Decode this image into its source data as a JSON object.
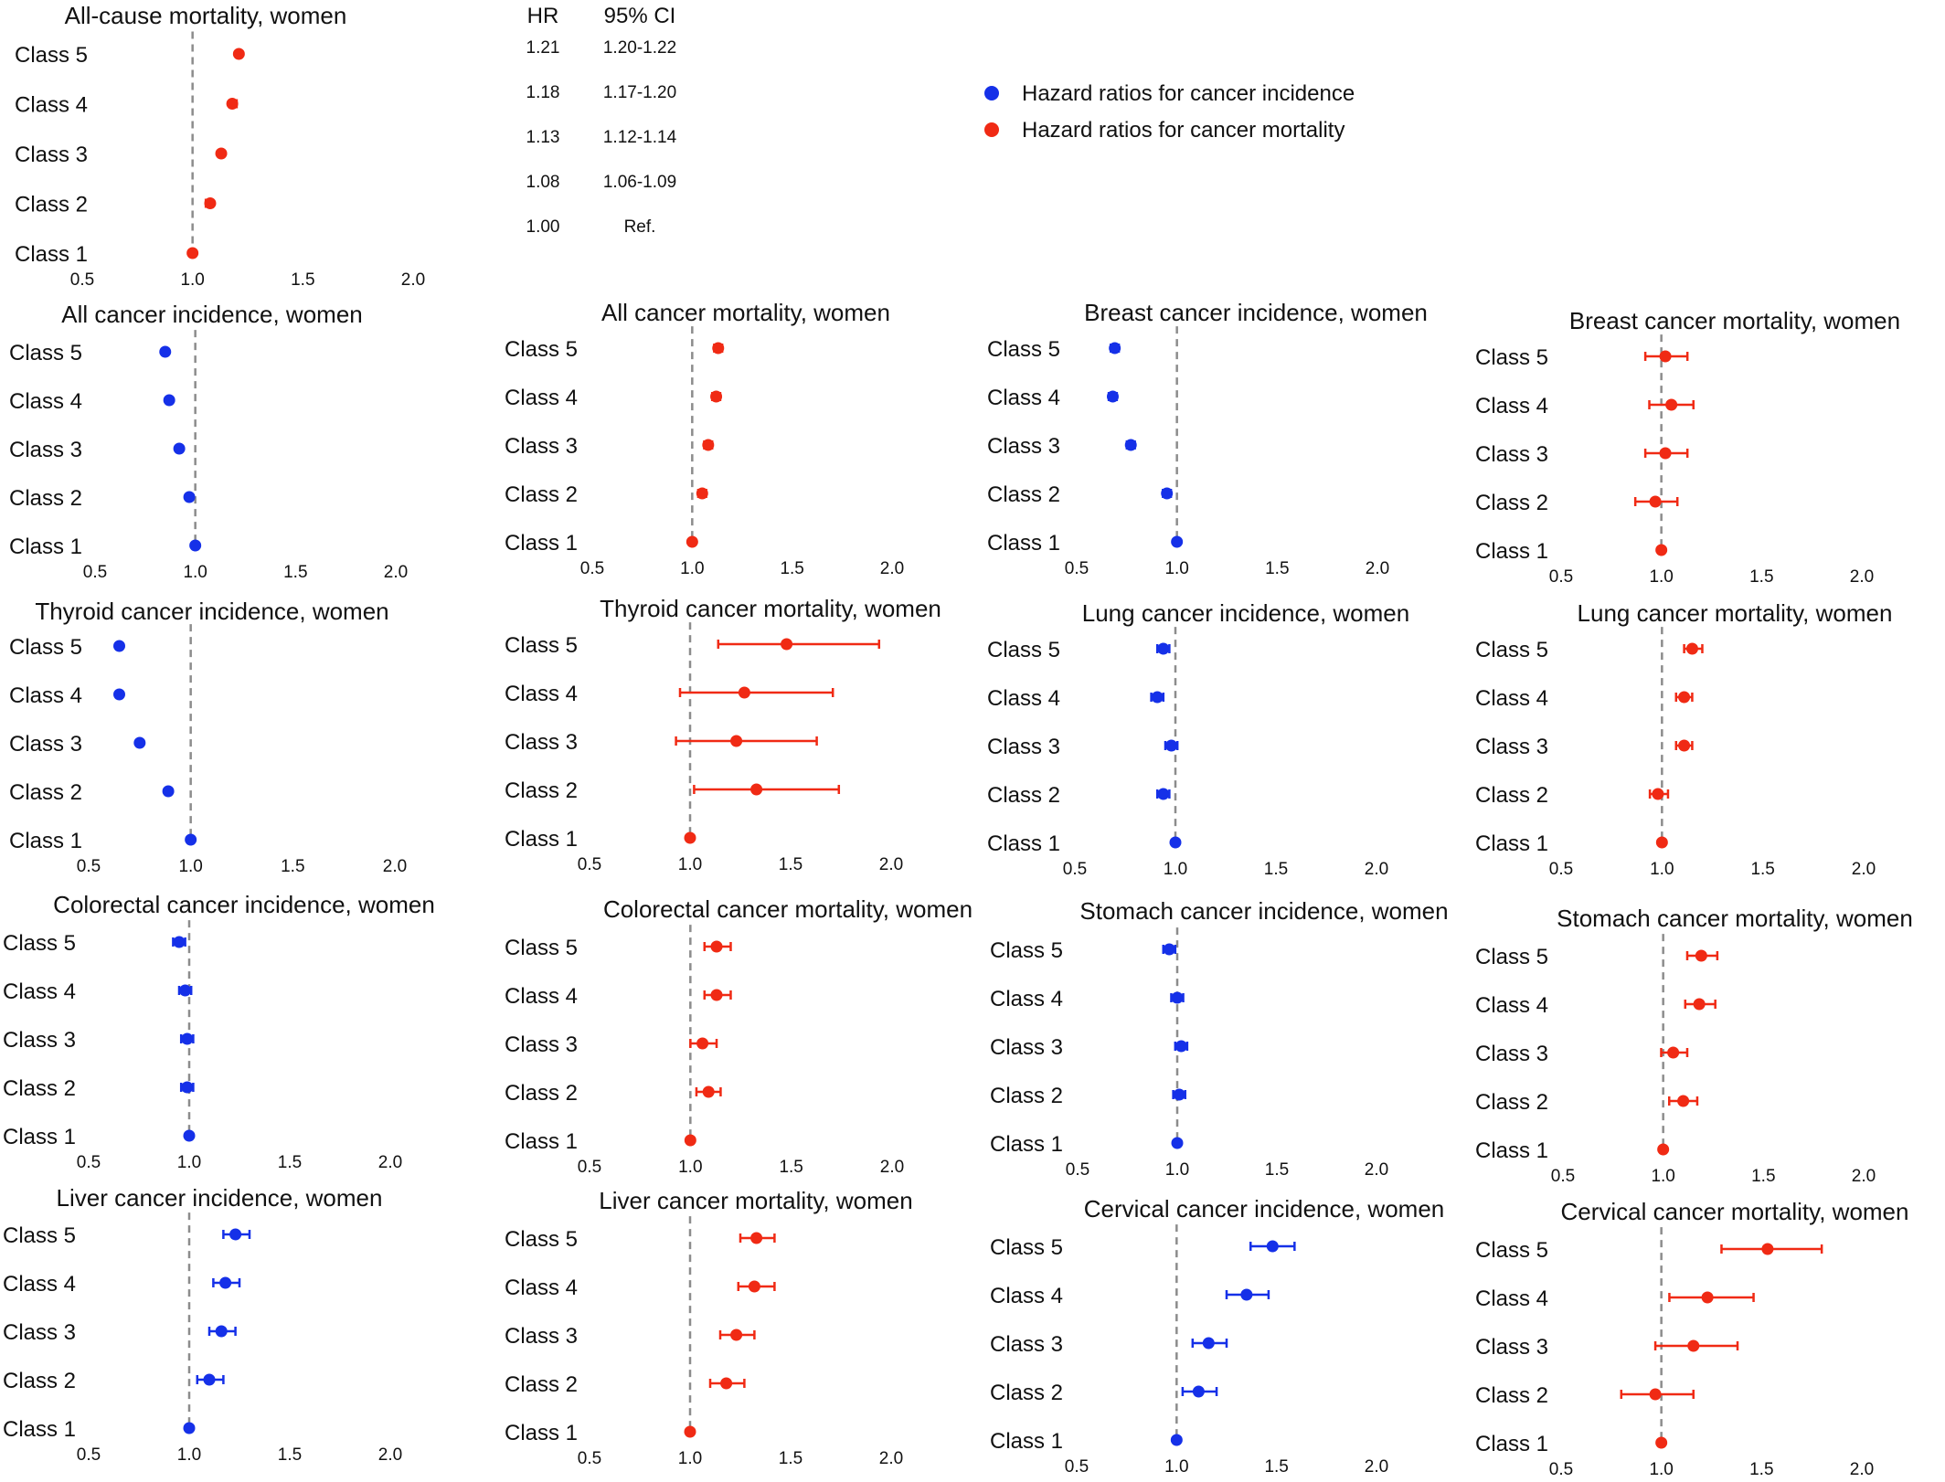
{
  "colors": {
    "incidence": "#1530e8",
    "mortality": "#f02a14",
    "ref_line": "#8c8c8c"
  },
  "legend": [
    {
      "label": "Hazard ratios for cancer incidence",
      "color": "#1530e8"
    },
    {
      "label": "Hazard ratios for cancer mortality",
      "color": "#f02a14"
    }
  ],
  "hr_table": {
    "headers": [
      "HR",
      "95% CI"
    ],
    "rows": [
      {
        "hr": "1.21",
        "ci": "1.20-1.22"
      },
      {
        "hr": "1.18",
        "ci": "1.17-1.20"
      },
      {
        "hr": "1.13",
        "ci": "1.12-1.14"
      },
      {
        "hr": "1.08",
        "ci": "1.06-1.09"
      },
      {
        "hr": "1.00",
        "ci": "Ref."
      }
    ]
  },
  "chart_data": [
    {
      "type": "forest",
      "title": "All-cause mortality, women",
      "kind": "mortality",
      "categories": [
        "Class 5",
        "Class 4",
        "Class 3",
        "Class 2",
        "Class 1"
      ],
      "hr": [
        1.21,
        1.18,
        1.13,
        1.08,
        1.0
      ],
      "ci_low": [
        1.2,
        1.17,
        1.12,
        1.06,
        1.0
      ],
      "ci_high": [
        1.22,
        1.2,
        1.14,
        1.09,
        1.0
      ],
      "xlim": [
        0.5,
        2.0
      ],
      "xticks": [
        "0.5",
        "1.0",
        "1.5",
        "2.0"
      ],
      "ref_value": 1.0
    },
    {
      "type": "forest",
      "title": "All cancer incidence, women",
      "kind": "incidence",
      "categories": [
        "Class 5",
        "Class 4",
        "Class 3",
        "Class 2",
        "Class 1"
      ],
      "hr": [
        0.85,
        0.87,
        0.92,
        0.97,
        1.0
      ],
      "ci_low": [
        0.84,
        0.86,
        0.91,
        0.96,
        1.0
      ],
      "ci_high": [
        0.86,
        0.88,
        0.93,
        0.98,
        1.0
      ],
      "xlim": [
        0.5,
        2.0
      ],
      "xticks": [
        "0.5",
        "1.0",
        "1.5",
        "2.0"
      ],
      "ref_value": 1.0
    },
    {
      "type": "forest",
      "title": "All cancer mortality, women",
      "kind": "mortality",
      "categories": [
        "Class 5",
        "Class 4",
        "Class 3",
        "Class 2",
        "Class 1"
      ],
      "hr": [
        1.13,
        1.12,
        1.08,
        1.05,
        1.0
      ],
      "ci_low": [
        1.11,
        1.1,
        1.06,
        1.03,
        1.0
      ],
      "ci_high": [
        1.15,
        1.14,
        1.1,
        1.07,
        1.0
      ],
      "xlim": [
        0.5,
        2.0
      ],
      "xticks": [
        "0.5",
        "1.0",
        "1.5",
        "2.0"
      ],
      "ref_value": 1.0
    },
    {
      "type": "forest",
      "title": "Breast cancer incidence, women",
      "kind": "incidence",
      "categories": [
        "Class 5",
        "Class 4",
        "Class 3",
        "Class 2",
        "Class 1"
      ],
      "hr": [
        0.69,
        0.68,
        0.77,
        0.95,
        1.0
      ],
      "ci_low": [
        0.67,
        0.66,
        0.75,
        0.93,
        1.0
      ],
      "ci_high": [
        0.71,
        0.7,
        0.79,
        0.97,
        1.0
      ],
      "xlim": [
        0.5,
        2.0
      ],
      "xticks": [
        "0.5",
        "1.0",
        "1.5",
        "2.0"
      ],
      "ref_value": 1.0
    },
    {
      "type": "forest",
      "title": "Breast cancer mortality, women",
      "kind": "mortality",
      "categories": [
        "Class 5",
        "Class 4",
        "Class 3",
        "Class 2",
        "Class 1"
      ],
      "hr": [
        1.02,
        1.05,
        1.02,
        0.97,
        1.0
      ],
      "ci_low": [
        0.92,
        0.94,
        0.92,
        0.87,
        1.0
      ],
      "ci_high": [
        1.13,
        1.16,
        1.13,
        1.08,
        1.0
      ],
      "xlim": [
        0.5,
        2.0
      ],
      "xticks": [
        "0.5",
        "1.0",
        "1.5",
        "2.0"
      ],
      "ref_value": 1.0
    },
    {
      "type": "forest",
      "title": "Thyroid cancer incidence, women",
      "kind": "incidence",
      "categories": [
        "Class 5",
        "Class 4",
        "Class 3",
        "Class 2",
        "Class 1"
      ],
      "hr": [
        0.65,
        0.65,
        0.75,
        0.89,
        1.0
      ],
      "ci_low": [
        0.64,
        0.64,
        0.74,
        0.88,
        1.0
      ],
      "ci_high": [
        0.66,
        0.66,
        0.76,
        0.9,
        1.0
      ],
      "xlim": [
        0.5,
        2.0
      ],
      "xticks": [
        "0.5",
        "1.0",
        "1.5",
        "2.0"
      ],
      "ref_value": 1.0
    },
    {
      "type": "forest",
      "title": "Thyroid cancer mortality, women",
      "kind": "mortality",
      "categories": [
        "Class 5",
        "Class 4",
        "Class 3",
        "Class 2",
        "Class 1"
      ],
      "hr": [
        1.48,
        1.27,
        1.23,
        1.33,
        1.0
      ],
      "ci_low": [
        1.14,
        0.95,
        0.93,
        1.02,
        1.0
      ],
      "ci_high": [
        1.94,
        1.71,
        1.63,
        1.74,
        1.0
      ],
      "xlim": [
        0.5,
        2.0
      ],
      "xticks": [
        "0.5",
        "1.0",
        "1.5",
        "2.0"
      ],
      "ref_value": 1.0
    },
    {
      "type": "forest",
      "title": "Lung cancer incidence, women",
      "kind": "incidence",
      "categories": [
        "Class 5",
        "Class 4",
        "Class 3",
        "Class 2",
        "Class 1"
      ],
      "hr": [
        0.94,
        0.91,
        0.98,
        0.94,
        1.0
      ],
      "ci_low": [
        0.91,
        0.88,
        0.95,
        0.91,
        1.0
      ],
      "ci_high": [
        0.97,
        0.94,
        1.01,
        0.97,
        1.0
      ],
      "xlim": [
        0.5,
        2.0
      ],
      "xticks": [
        "0.5",
        "1.0",
        "1.5",
        "2.0"
      ],
      "ref_value": 1.0
    },
    {
      "type": "forest",
      "title": "Lung cancer mortality, women",
      "kind": "mortality",
      "categories": [
        "Class 5",
        "Class 4",
        "Class 3",
        "Class 2",
        "Class 1"
      ],
      "hr": [
        1.15,
        1.11,
        1.11,
        0.98,
        1.0
      ],
      "ci_low": [
        1.11,
        1.07,
        1.07,
        0.94,
        1.0
      ],
      "ci_high": [
        1.2,
        1.15,
        1.15,
        1.03,
        1.0
      ],
      "xlim": [
        0.5,
        2.0
      ],
      "xticks": [
        "0.5",
        "1.0",
        "1.5",
        "2.0"
      ],
      "ref_value": 1.0
    },
    {
      "type": "forest",
      "title": "Colorectal cancer incidence, women",
      "kind": "incidence",
      "categories": [
        "Class 5",
        "Class 4",
        "Class 3",
        "Class 2",
        "Class 1"
      ],
      "hr": [
        0.95,
        0.98,
        0.99,
        0.99,
        1.0
      ],
      "ci_low": [
        0.92,
        0.95,
        0.96,
        0.96,
        1.0
      ],
      "ci_high": [
        0.98,
        1.01,
        1.02,
        1.02,
        1.0
      ],
      "xlim": [
        0.5,
        2.0
      ],
      "xticks": [
        "0.5",
        "1.0",
        "1.5",
        "2.0"
      ],
      "ref_value": 1.0
    },
    {
      "type": "forest",
      "title": "Colorectal cancer mortality, women",
      "kind": "mortality",
      "categories": [
        "Class 5",
        "Class 4",
        "Class 3",
        "Class 2",
        "Class 1"
      ],
      "hr": [
        1.13,
        1.13,
        1.06,
        1.09,
        1.0
      ],
      "ci_low": [
        1.07,
        1.07,
        1.0,
        1.03,
        1.0
      ],
      "ci_high": [
        1.2,
        1.2,
        1.13,
        1.15,
        1.0
      ],
      "xlim": [
        0.5,
        2.0
      ],
      "xticks": [
        "0.5",
        "1.0",
        "1.5",
        "2.0"
      ],
      "ref_value": 1.0
    },
    {
      "type": "forest",
      "title": "Stomach cancer incidence, women",
      "kind": "incidence",
      "categories": [
        "Class 5",
        "Class 4",
        "Class 3",
        "Class 2",
        "Class 1"
      ],
      "hr": [
        0.96,
        1.0,
        1.02,
        1.01,
        1.0
      ],
      "ci_low": [
        0.93,
        0.97,
        0.99,
        0.98,
        1.0
      ],
      "ci_high": [
        0.99,
        1.03,
        1.05,
        1.04,
        1.0
      ],
      "xlim": [
        0.5,
        2.0
      ],
      "xticks": [
        "0.5",
        "1.0",
        "1.5",
        "2.0"
      ],
      "ref_value": 1.0
    },
    {
      "type": "forest",
      "title": "Stomach cancer mortality, women",
      "kind": "mortality",
      "categories": [
        "Class 5",
        "Class 4",
        "Class 3",
        "Class 2",
        "Class 1"
      ],
      "hr": [
        1.19,
        1.18,
        1.05,
        1.1,
        1.0
      ],
      "ci_low": [
        1.12,
        1.11,
        0.99,
        1.03,
        1.0
      ],
      "ci_high": [
        1.27,
        1.26,
        1.12,
        1.17,
        1.0
      ],
      "xlim": [
        0.5,
        2.0
      ],
      "xticks": [
        "0.5",
        "1.0",
        "1.5",
        "2.0"
      ],
      "ref_value": 1.0
    },
    {
      "type": "forest",
      "title": "Liver cancer incidence, women",
      "kind": "incidence",
      "categories": [
        "Class 5",
        "Class 4",
        "Class 3",
        "Class 2",
        "Class 1"
      ],
      "hr": [
        1.23,
        1.18,
        1.16,
        1.1,
        1.0
      ],
      "ci_low": [
        1.17,
        1.12,
        1.1,
        1.04,
        1.0
      ],
      "ci_high": [
        1.3,
        1.25,
        1.23,
        1.17,
        1.0
      ],
      "xlim": [
        0.5,
        2.0
      ],
      "xticks": [
        "0.5",
        "1.0",
        "1.5",
        "2.0"
      ],
      "ref_value": 1.0
    },
    {
      "type": "forest",
      "title": "Liver cancer mortality, women",
      "kind": "mortality",
      "categories": [
        "Class 5",
        "Class 4",
        "Class 3",
        "Class 2",
        "Class 1"
      ],
      "hr": [
        1.33,
        1.32,
        1.23,
        1.18,
        1.0
      ],
      "ci_low": [
        1.25,
        1.24,
        1.15,
        1.1,
        1.0
      ],
      "ci_high": [
        1.42,
        1.42,
        1.32,
        1.27,
        1.0
      ],
      "xlim": [
        0.5,
        2.0
      ],
      "xticks": [
        "0.5",
        "1.0",
        "1.5",
        "2.0"
      ],
      "ref_value": 1.0
    },
    {
      "type": "forest",
      "title": "Cervical cancer incidence, women",
      "kind": "incidence",
      "categories": [
        "Class 5",
        "Class 4",
        "Class 3",
        "Class 2",
        "Class 1"
      ],
      "hr": [
        1.48,
        1.35,
        1.16,
        1.11,
        1.0
      ],
      "ci_low": [
        1.37,
        1.25,
        1.08,
        1.03,
        1.0
      ],
      "ci_high": [
        1.59,
        1.46,
        1.25,
        1.2,
        1.0
      ],
      "xlim": [
        0.5,
        2.0
      ],
      "xticks": [
        "0.5",
        "1.0",
        "1.5",
        "2.0"
      ],
      "ref_value": 1.0
    },
    {
      "type": "forest",
      "title": "Cervical cancer mortality, women",
      "kind": "mortality",
      "categories": [
        "Class 5",
        "Class 4",
        "Class 3",
        "Class 2",
        "Class 1"
      ],
      "hr": [
        1.53,
        1.23,
        1.16,
        0.97,
        1.0
      ],
      "ci_low": [
        1.3,
        1.04,
        0.97,
        0.8,
        1.0
      ],
      "ci_high": [
        1.8,
        1.46,
        1.38,
        1.16,
        1.0
      ],
      "xlim": [
        0.5,
        2.0
      ],
      "xticks": [
        "0.5",
        "1.0",
        "1.5",
        "2.0"
      ],
      "ref_value": 1.0
    }
  ]
}
